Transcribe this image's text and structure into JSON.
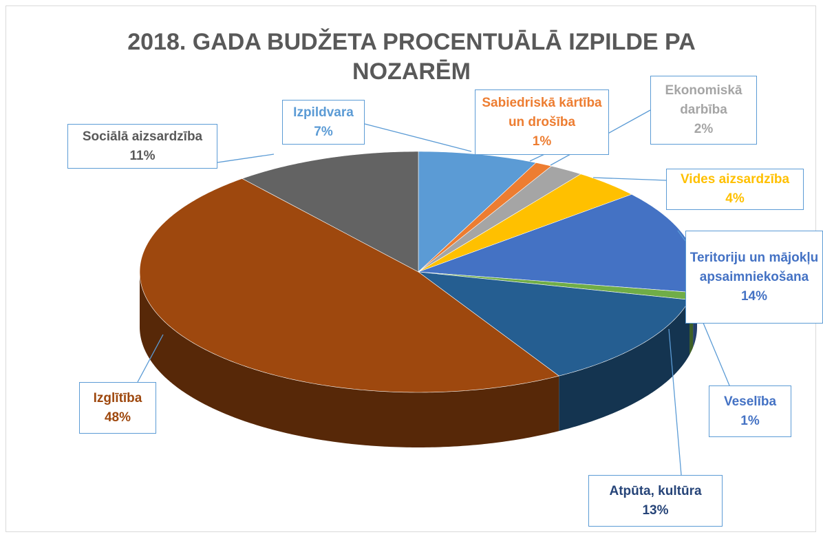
{
  "chart_data": {
    "type": "pie",
    "title": "2018. GADA BUDŽETA PROCENTUĀLĀ IZPILDE PA NOZARĒM",
    "categories": [
      "Izpildvara",
      "Sabiedriskā kārtība un drošība",
      "Ekonomiskā darbība",
      "Vides aizsardzība",
      "Teritoriju un mājokļu apsaimniekošana",
      "Veselība",
      "Atpūta, kultūra",
      "Izglītība",
      "Sociālā aizsardzība"
    ],
    "values": [
      7,
      1,
      2,
      4,
      14,
      1,
      13,
      48,
      11
    ],
    "value_labels": [
      "7%",
      "1%",
      "2%",
      "4%",
      "14%",
      "1%",
      "13%",
      "48%",
      "11%"
    ],
    "colors": [
      "#5b9bd5",
      "#ed7d31",
      "#a5a5a5",
      "#ffc000",
      "#4472c4",
      "#70ad47",
      "#255e91",
      "#9e480e",
      "#636363"
    ]
  }
}
